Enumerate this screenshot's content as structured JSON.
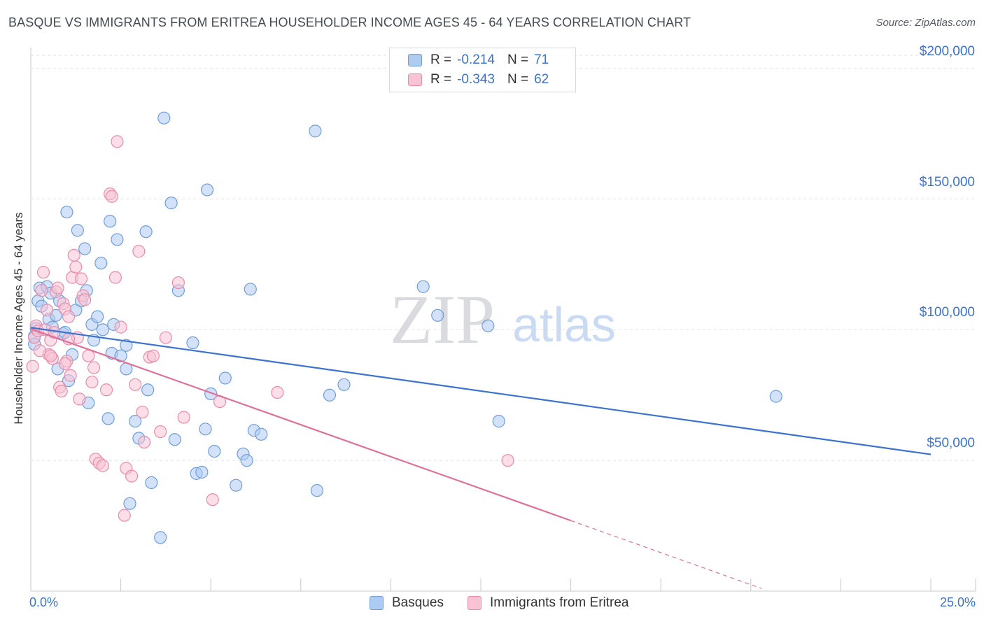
{
  "title": "BASQUE VS IMMIGRANTS FROM ERITREA HOUSEHOLDER INCOME AGES 45 - 64 YEARS CORRELATION CHART",
  "source": "Source: ZipAtlas.com",
  "watermark": {
    "zip": "ZIP",
    "atlas": "atlas"
  },
  "legend": {
    "r_label": "R =",
    "n_label": "N =",
    "items": [
      {
        "name": "Basques",
        "r": "-0.214",
        "n": "71",
        "fill": "#aecbf2",
        "stroke": "#6f9edc"
      },
      {
        "name": "Immigrants from Eritrea",
        "r": "-0.343",
        "n": "62",
        "fill": "#f8c3d3",
        "stroke": "#ea8ca9"
      }
    ]
  },
  "chart_data": {
    "type": "scatter",
    "title": "BASQUE VS IMMIGRANTS FROM ERITREA HOUSEHOLDER INCOME AGES 45 - 64 YEARS CORRELATION CHART",
    "xlabel": "",
    "ylabel": "Householder Income Ages 45 - 64 years",
    "xlim": [
      0,
      25
    ],
    "ylim": [
      0,
      205000
    ],
    "x_tick_labels": [
      "0.0%",
      "25.0%"
    ],
    "y_ticks": [
      50000,
      100000,
      150000,
      200000
    ],
    "y_tick_labels": [
      "$50,000",
      "$100,000",
      "$150,000",
      "$200,000"
    ],
    "grid": true,
    "legend_position": "top-center",
    "series": [
      {
        "name": "Basques",
        "color": "#3b73d1",
        "trend": {
          "x": [
            0,
            25
          ],
          "y": [
            100800,
            52300
          ]
        },
        "points": [
          [
            0.1,
            97500
          ],
          [
            0.15,
            100500
          ],
          [
            0.2,
            111000
          ],
          [
            0.25,
            116000
          ],
          [
            0.3,
            109000
          ],
          [
            0.45,
            116500
          ],
          [
            0.5,
            104000
          ],
          [
            0.55,
            114000
          ],
          [
            0.6,
            101000
          ],
          [
            0.7,
            105500
          ],
          [
            0.75,
            85000
          ],
          [
            0.8,
            111000
          ],
          [
            0.9,
            98500
          ],
          [
            0.95,
            99000
          ],
          [
            1.0,
            145000
          ],
          [
            1.05,
            80500
          ],
          [
            1.15,
            90500
          ],
          [
            1.25,
            107500
          ],
          [
            1.3,
            138000
          ],
          [
            1.4,
            111000
          ],
          [
            1.5,
            131000
          ],
          [
            1.55,
            115000
          ],
          [
            1.6,
            72000
          ],
          [
            1.7,
            102000
          ],
          [
            1.75,
            96000
          ],
          [
            1.85,
            105000
          ],
          [
            1.95,
            125500
          ],
          [
            2.0,
            100000
          ],
          [
            2.15,
            66000
          ],
          [
            2.2,
            141500
          ],
          [
            2.25,
            91000
          ],
          [
            2.3,
            102000
          ],
          [
            2.4,
            134500
          ],
          [
            2.5,
            90000
          ],
          [
            2.65,
            94000
          ],
          [
            2.65,
            85000
          ],
          [
            2.75,
            33500
          ],
          [
            2.9,
            65000
          ],
          [
            3.0,
            58500
          ],
          [
            3.2,
            137500
          ],
          [
            3.25,
            77000
          ],
          [
            3.35,
            41500
          ],
          [
            3.6,
            20500
          ],
          [
            3.7,
            181000
          ],
          [
            3.9,
            148500
          ],
          [
            4.0,
            58000
          ],
          [
            4.1,
            115000
          ],
          [
            4.5,
            95000
          ],
          [
            4.6,
            45000
          ],
          [
            4.75,
            45500
          ],
          [
            4.85,
            62000
          ],
          [
            4.9,
            153500
          ],
          [
            5.0,
            75500
          ],
          [
            5.1,
            53500
          ],
          [
            5.4,
            81500
          ],
          [
            5.7,
            40500
          ],
          [
            5.9,
            52500
          ],
          [
            6.0,
            50000
          ],
          [
            6.1,
            115500
          ],
          [
            6.2,
            61500
          ],
          [
            6.4,
            60000
          ],
          [
            7.9,
            176000
          ],
          [
            7.95,
            38500
          ],
          [
            8.3,
            75000
          ],
          [
            8.7,
            79000
          ],
          [
            10.9,
            116500
          ],
          [
            11.3,
            105500
          ],
          [
            12.7,
            101500
          ],
          [
            13.0,
            65000
          ],
          [
            20.7,
            74500
          ],
          [
            0.1,
            94500
          ]
        ]
      },
      {
        "name": "Immigrants from Eritrea",
        "color": "#e0709a",
        "trend": {
          "x": [
            0,
            15
          ],
          "y": [
            100300,
            27000
          ]
        },
        "trend_dashed": {
          "x": [
            15,
            20.3
          ],
          "y": [
            27000,
            1000
          ]
        },
        "points": [
          [
            0.05,
            86000
          ],
          [
            0.1,
            97000
          ],
          [
            0.15,
            101500
          ],
          [
            0.2,
            99500
          ],
          [
            0.3,
            115000
          ],
          [
            0.35,
            122000
          ],
          [
            0.4,
            100000
          ],
          [
            0.45,
            107500
          ],
          [
            0.5,
            90500
          ],
          [
            0.55,
            96000
          ],
          [
            0.6,
            89000
          ],
          [
            0.65,
            99000
          ],
          [
            0.7,
            114500
          ],
          [
            0.75,
            116000
          ],
          [
            0.8,
            78000
          ],
          [
            0.85,
            76500
          ],
          [
            0.9,
            110000
          ],
          [
            0.95,
            108000
          ],
          [
            1.0,
            88000
          ],
          [
            1.05,
            105000
          ],
          [
            1.1,
            82500
          ],
          [
            1.15,
            120000
          ],
          [
            1.2,
            128500
          ],
          [
            1.25,
            124000
          ],
          [
            1.3,
            97000
          ],
          [
            1.35,
            73500
          ],
          [
            1.4,
            119500
          ],
          [
            1.45,
            113000
          ],
          [
            1.5,
            111500
          ],
          [
            1.6,
            90000
          ],
          [
            1.7,
            80000
          ],
          [
            1.75,
            85500
          ],
          [
            1.8,
            50500
          ],
          [
            1.9,
            49000
          ],
          [
            2.0,
            48000
          ],
          [
            2.1,
            77000
          ],
          [
            2.2,
            152000
          ],
          [
            2.25,
            151000
          ],
          [
            2.35,
            120000
          ],
          [
            2.4,
            172000
          ],
          [
            2.5,
            101000
          ],
          [
            2.6,
            29000
          ],
          [
            2.65,
            47000
          ],
          [
            2.8,
            44000
          ],
          [
            2.9,
            79000
          ],
          [
            3.0,
            130000
          ],
          [
            3.1,
            68500
          ],
          [
            3.15,
            57000
          ],
          [
            3.3,
            89500
          ],
          [
            3.4,
            90000
          ],
          [
            3.6,
            61000
          ],
          [
            3.75,
            97000
          ],
          [
            4.1,
            118000
          ],
          [
            4.25,
            66500
          ],
          [
            5.05,
            35000
          ],
          [
            5.25,
            72500
          ],
          [
            6.85,
            76000
          ],
          [
            13.25,
            50000
          ],
          [
            0.55,
            90000
          ],
          [
            1.05,
            96500
          ],
          [
            0.25,
            92000
          ],
          [
            0.95,
            87000
          ]
        ]
      }
    ]
  }
}
